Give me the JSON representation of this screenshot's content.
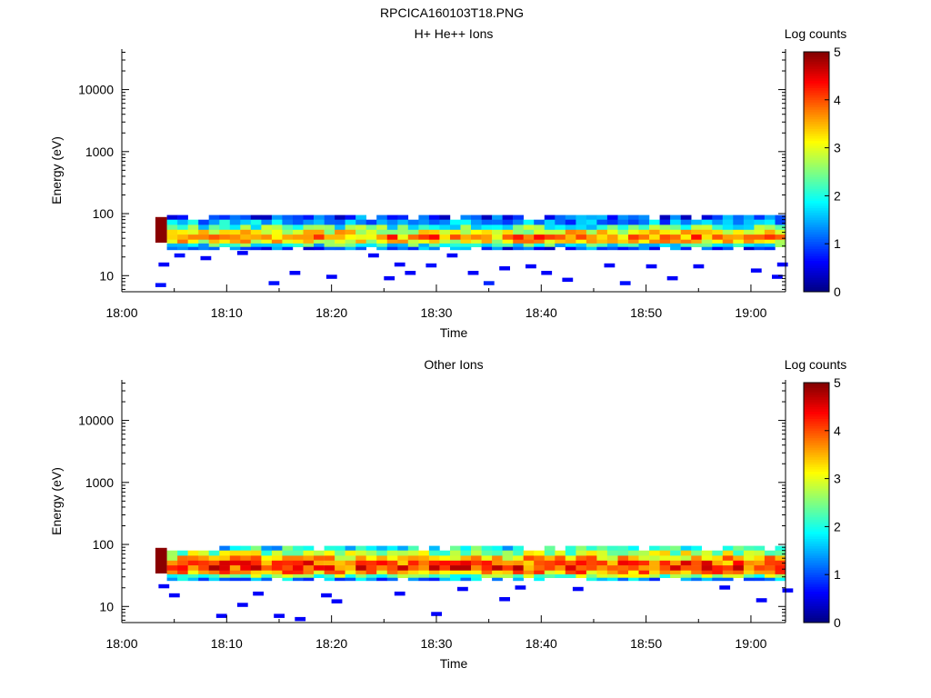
{
  "page": {
    "title": "RPCICA160103T18.PNG"
  },
  "colors": {
    "colormap": [
      "#000080",
      "#0000ff",
      "#0080ff",
      "#00ffff",
      "#80ff80",
      "#ffff00",
      "#ff8000",
      "#ff0000",
      "#800000"
    ]
  },
  "chart_data": [
    {
      "type": "heatmap",
      "title": "H+ He++ Ions",
      "xlabel": "Time",
      "ylabel": "Energy (eV)",
      "x_ticks": [
        "18:00",
        "18:10",
        "18:20",
        "18:30",
        "18:40",
        "18:50",
        "19:00"
      ],
      "x_range_minutes": [
        0,
        63.3
      ],
      "y_scale": "log",
      "y_ticks": [
        "10",
        "100",
        "1000",
        "10000"
      ],
      "y_range": [
        5.5,
        45000
      ],
      "colorbar": {
        "label": "Log counts",
        "range": [
          0,
          5
        ],
        "ticks": [
          "0",
          "1",
          "2",
          "3",
          "4",
          "5"
        ]
      },
      "time_start_minute": 3.0,
      "bin_width_minutes": 1.0,
      "bands": [
        {
          "emin": 80,
          "emax": 95,
          "level": 0.9
        },
        {
          "emin": 66,
          "emax": 80,
          "level": 1.4
        },
        {
          "emin": 55,
          "emax": 66,
          "level": 2.2
        },
        {
          "emin": 46,
          "emax": 55,
          "level": 3.1
        },
        {
          "emin": 38,
          "emax": 46,
          "level": 3.7
        },
        {
          "emin": 33,
          "emax": 38,
          "level": 3.2
        },
        {
          "emin": 29,
          "emax": 33,
          "level": 2.0
        },
        {
          "emin": 26,
          "emax": 29,
          "level": 1.0
        }
      ],
      "peak_block": {
        "t_start": 3.2,
        "t_end": 4.3,
        "emin": 34,
        "emax": 88,
        "level": 4.95
      },
      "sparse_cells": [
        {
          "t": 3.5,
          "e": 15.0,
          "level": 0.6
        },
        {
          "t": 5.0,
          "e": 21.0,
          "level": 0.7
        },
        {
          "t": 7.5,
          "e": 19.0,
          "level": 0.6
        },
        {
          "t": 3.2,
          "e": 7.0,
          "level": 0.7
        },
        {
          "t": 11.0,
          "e": 23.0,
          "level": 0.6
        },
        {
          "t": 16.0,
          "e": 11.0,
          "level": 0.6
        },
        {
          "t": 14.0,
          "e": 7.5,
          "level": 0.7
        },
        {
          "t": 19.5,
          "e": 9.5,
          "level": 0.6
        },
        {
          "t": 23.5,
          "e": 21.0,
          "level": 0.6
        },
        {
          "t": 25.0,
          "e": 9.0,
          "level": 0.6
        },
        {
          "t": 26.0,
          "e": 15.0,
          "level": 0.6
        },
        {
          "t": 27.0,
          "e": 11.0,
          "level": 0.6
        },
        {
          "t": 29.0,
          "e": 14.5,
          "level": 0.7
        },
        {
          "t": 33.0,
          "e": 11.0,
          "level": 0.6
        },
        {
          "t": 34.5,
          "e": 7.5,
          "level": 0.8
        },
        {
          "t": 36.0,
          "e": 13.0,
          "level": 0.6
        },
        {
          "t": 38.5,
          "e": 14.0,
          "level": 0.6
        },
        {
          "t": 40.0,
          "e": 11.0,
          "level": 0.6
        },
        {
          "t": 42.0,
          "e": 8.5,
          "level": 0.6
        },
        {
          "t": 46.0,
          "e": 14.5,
          "level": 0.6
        },
        {
          "t": 47.5,
          "e": 7.5,
          "level": 0.7
        },
        {
          "t": 50.0,
          "e": 14.0,
          "level": 0.6
        },
        {
          "t": 52.0,
          "e": 9.0,
          "level": 0.6
        },
        {
          "t": 54.5,
          "e": 14.0,
          "level": 0.6
        },
        {
          "t": 60.0,
          "e": 12.0,
          "level": 0.6
        },
        {
          "t": 62.5,
          "e": 15.0,
          "level": 0.6
        },
        {
          "t": 62.0,
          "e": 9.5,
          "level": 0.6
        },
        {
          "t": 31.0,
          "e": 21.0,
          "level": 0.6
        }
      ]
    },
    {
      "type": "heatmap",
      "title": "Other Ions",
      "xlabel": "Time",
      "ylabel": "Energy (eV)",
      "x_ticks": [
        "18:00",
        "18:10",
        "18:20",
        "18:30",
        "18:40",
        "18:50",
        "19:00"
      ],
      "x_range_minutes": [
        0,
        63.3
      ],
      "y_scale": "log",
      "y_ticks": [
        "10",
        "100",
        "1000",
        "10000"
      ],
      "y_range": [
        5.5,
        45000
      ],
      "colorbar": {
        "label": "Log counts",
        "range": [
          0,
          5
        ],
        "ticks": [
          "0",
          "1",
          "2",
          "3",
          "4",
          "5"
        ]
      },
      "time_start_minute": 3.0,
      "bin_width_minutes": 1.0,
      "bands": [
        {
          "emin": 80,
          "emax": 95,
          "level": 1.9
        },
        {
          "emin": 66,
          "emax": 80,
          "level": 2.7
        },
        {
          "emin": 55,
          "emax": 66,
          "level": 3.4
        },
        {
          "emin": 46,
          "emax": 55,
          "level": 3.9
        },
        {
          "emin": 38,
          "emax": 46,
          "level": 4.1
        },
        {
          "emin": 33,
          "emax": 38,
          "level": 3.6
        },
        {
          "emin": 29,
          "emax": 33,
          "level": 2.5
        },
        {
          "emin": 26,
          "emax": 29,
          "level": 1.4
        }
      ],
      "peak_block": {
        "t_start": 3.2,
        "t_end": 4.3,
        "emin": 34,
        "emax": 88,
        "level": 4.95
      },
      "sparse_cells": [
        {
          "t": 3.5,
          "e": 21.0,
          "level": 0.6
        },
        {
          "t": 4.5,
          "e": 15.0,
          "level": 0.6
        },
        {
          "t": 9.0,
          "e": 7.0,
          "level": 0.6
        },
        {
          "t": 11.0,
          "e": 10.5,
          "level": 0.6
        },
        {
          "t": 12.5,
          "e": 16.0,
          "level": 0.6
        },
        {
          "t": 14.5,
          "e": 7.0,
          "level": 0.6
        },
        {
          "t": 16.5,
          "e": 6.2,
          "level": 0.6
        },
        {
          "t": 19.0,
          "e": 15.0,
          "level": 0.6
        },
        {
          "t": 20.0,
          "e": 12.0,
          "level": 0.6
        },
        {
          "t": 26.0,
          "e": 16.0,
          "level": 0.6
        },
        {
          "t": 29.5,
          "e": 7.5,
          "level": 0.6
        },
        {
          "t": 32.0,
          "e": 19.0,
          "level": 0.6
        },
        {
          "t": 36.0,
          "e": 13.0,
          "level": 0.6
        },
        {
          "t": 37.5,
          "e": 20.0,
          "level": 0.6
        },
        {
          "t": 43.0,
          "e": 19.0,
          "level": 0.6
        },
        {
          "t": 57.0,
          "e": 20.0,
          "level": 0.6
        },
        {
          "t": 60.5,
          "e": 12.5,
          "level": 0.6
        },
        {
          "t": 63.0,
          "e": 18.0,
          "level": 0.6
        }
      ]
    }
  ]
}
